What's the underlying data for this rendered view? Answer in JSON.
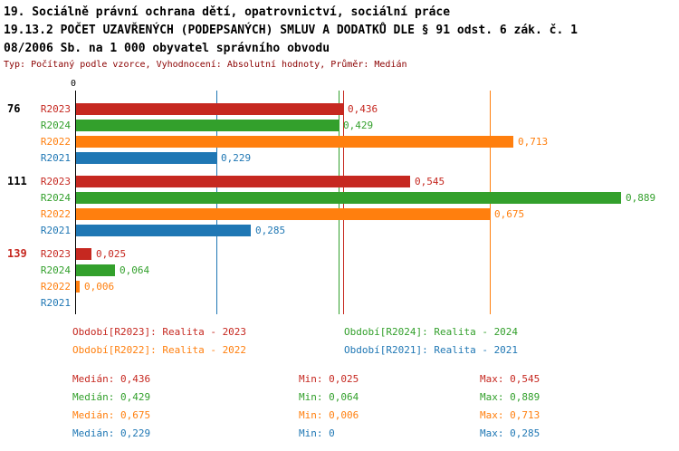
{
  "header": {
    "line1": "19. Sociálně právní ochrana dětí, opatrovnictví, sociální práce",
    "line2": "19.13.2 POČET UZAVŘENÝCH (PODEPSANÝCH) SMLUV A DODATKŮ DLE § 91 odst. 6 zák. č. 1",
    "line3": "08/2006 Sb. na 1 000 obyvatel správního obvodu",
    "meta": "Typ: Počítaný podle vzorce, Vyhodnocení: Absolutní hodnoty, Průměr: Medián"
  },
  "colors": {
    "R2023": "#c62820",
    "R2024": "#33a02c",
    "R2022": "#ff7f0e",
    "R2021": "#1f77b4",
    "group_default": "#000000",
    "group_highlight": "#c62820",
    "meta_text": "#8b0000",
    "axis": "#000000"
  },
  "chart_data": {
    "type": "bar",
    "orientation": "horizontal",
    "x_zero_label": "0",
    "xlim": [
      0,
      0.92
    ],
    "series_order": [
      "R2023",
      "R2024",
      "R2022",
      "R2021"
    ],
    "groups": [
      {
        "label": "76",
        "highlight": false,
        "bars": [
          {
            "series": "R2023",
            "value": 0.436,
            "display": "0,436"
          },
          {
            "series": "R2024",
            "value": 0.429,
            "display": "0,429"
          },
          {
            "series": "R2022",
            "value": 0.713,
            "display": "0,713"
          },
          {
            "series": "R2021",
            "value": 0.229,
            "display": "0,229"
          }
        ]
      },
      {
        "label": "111",
        "highlight": false,
        "bars": [
          {
            "series": "R2023",
            "value": 0.545,
            "display": "0,545"
          },
          {
            "series": "R2024",
            "value": 0.889,
            "display": "0,889"
          },
          {
            "series": "R2022",
            "value": 0.675,
            "display": "0,675"
          },
          {
            "series": "R2021",
            "value": 0.285,
            "display": "0,285"
          }
        ]
      },
      {
        "label": "139",
        "highlight": true,
        "bars": [
          {
            "series": "R2023",
            "value": 0.025,
            "display": "0,025"
          },
          {
            "series": "R2024",
            "value": 0.064,
            "display": "0,064"
          },
          {
            "series": "R2022",
            "value": 0.006,
            "display": "0,006"
          },
          {
            "series": "R2021",
            "value": 0,
            "display": ""
          }
        ]
      }
    ],
    "median_lines": [
      {
        "series": "R2023",
        "value": 0.436
      },
      {
        "series": "R2024",
        "value": 0.429
      },
      {
        "series": "R2022",
        "value": 0.675
      },
      {
        "series": "R2021",
        "value": 0.229
      }
    ]
  },
  "legend": [
    {
      "series": "R2023",
      "text": "Období[R2023]: Realita - 2023",
      "col": 0,
      "row": 0
    },
    {
      "series": "R2024",
      "text": "Období[R2024]: Realita - 2024",
      "col": 1,
      "row": 0
    },
    {
      "series": "R2022",
      "text": "Období[R2022]: Realita - 2022",
      "col": 0,
      "row": 1
    },
    {
      "series": "R2021",
      "text": "Období[R2021]: Realita - 2021",
      "col": 1,
      "row": 1
    }
  ],
  "stats": [
    {
      "series": "R2023",
      "median": "Medián: 0,436",
      "min": "Min: 0,025",
      "max": "Max: 0,545"
    },
    {
      "series": "R2024",
      "median": "Medián: 0,429",
      "min": "Min: 0,064",
      "max": "Max: 0,889"
    },
    {
      "series": "R2022",
      "median": "Medián: 0,675",
      "min": "Min: 0,006",
      "max": "Max: 0,713"
    },
    {
      "series": "R2021",
      "median": "Medián: 0,229",
      "min": "Min: 0",
      "max": "Max: 0,285"
    }
  ]
}
